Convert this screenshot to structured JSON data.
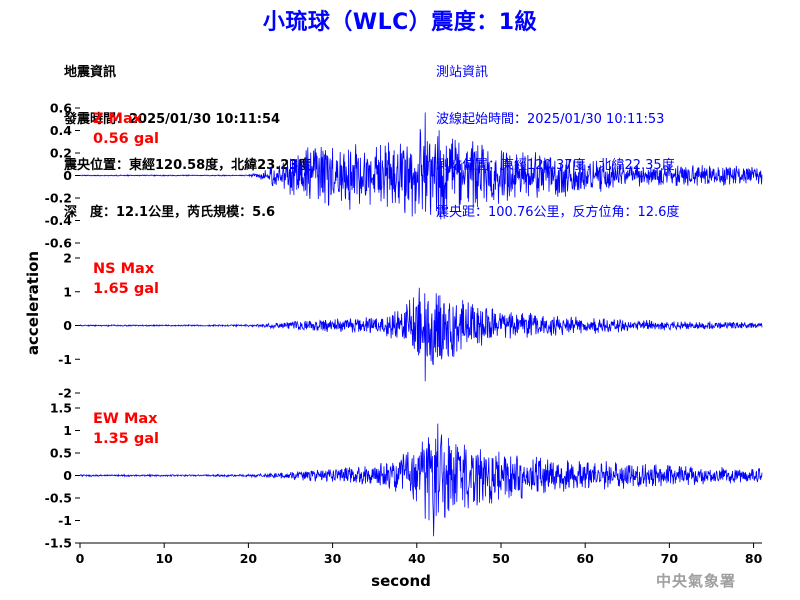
{
  "header": {
    "title": "小琉球（WLC）震度：1級",
    "quake_info": [
      "地震資訊",
      "發震時間：2025/01/30 10:11:54",
      "震央位置：東經120.58度，北緯23.23度",
      "深　度：12.1公里，芮氏規模：5.6"
    ],
    "station_info": [
      "測站資訊",
      "波線起始時間：2025/01/30 10:11:53",
      "測站位置：東經120.37度，北緯22.35度",
      "震央距：100.76公里，反方位角：12.6度"
    ]
  },
  "credit": "中央氣象署",
  "colors": {
    "trace": "#0000ff",
    "label": "#ff0000",
    "title": "#0000ff"
  },
  "chart_data": [
    {
      "type": "line",
      "component": "Z",
      "label": "Z Max",
      "max_text": "0.56 gal",
      "peak": 0.56,
      "ylim": [
        -0.6,
        0.6
      ],
      "yticks": [
        -0.6,
        -0.4,
        -0.2,
        0,
        0.2,
        0.4,
        0.6
      ],
      "ytick_labels": [
        "-0.6",
        "-0.4",
        "-0.2",
        "0",
        "0.2",
        "0.4",
        "0.6"
      ],
      "x": [
        0,
        5,
        10,
        15,
        20,
        21,
        22,
        23,
        24,
        25,
        26,
        28,
        30,
        32,
        34,
        36,
        38,
        40,
        41,
        42,
        43,
        44,
        46,
        48,
        50,
        52,
        55,
        58,
        60,
        65,
        70,
        75,
        80,
        81
      ],
      "envelope": [
        0.005,
        0.005,
        0.005,
        0.005,
        0.006,
        0.02,
        0.06,
        0.11,
        0.15,
        0.2,
        0.24,
        0.28,
        0.3,
        0.32,
        0.3,
        0.32,
        0.34,
        0.4,
        0.56,
        0.44,
        0.46,
        0.38,
        0.36,
        0.3,
        0.28,
        0.26,
        0.22,
        0.2,
        0.16,
        0.12,
        0.1,
        0.1,
        0.09,
        0.08
      ]
    },
    {
      "type": "line",
      "component": "NS",
      "label": "NS Max",
      "max_text": "1.65 gal",
      "peak": 1.65,
      "ylim": [
        -2,
        2
      ],
      "yticks": [
        -2,
        -1,
        0,
        1,
        2
      ],
      "ytick_labels": [
        "-2",
        "-1",
        "0",
        "1",
        "2"
      ],
      "x": [
        0,
        5,
        10,
        15,
        20,
        22,
        24,
        26,
        28,
        30,
        32,
        34,
        36,
        38,
        39,
        40,
        41,
        42,
        43,
        44,
        46,
        48,
        50,
        52,
        55,
        58,
        60,
        65,
        70,
        75,
        80,
        81
      ],
      "envelope": [
        0.02,
        0.02,
        0.02,
        0.02,
        0.03,
        0.06,
        0.1,
        0.14,
        0.18,
        0.22,
        0.24,
        0.26,
        0.3,
        0.5,
        0.8,
        1.2,
        1.65,
        1.3,
        1.1,
        1.0,
        0.7,
        0.6,
        0.5,
        0.42,
        0.36,
        0.3,
        0.26,
        0.2,
        0.14,
        0.12,
        0.1,
        0.09
      ]
    },
    {
      "type": "line",
      "component": "EW",
      "label": "EW Max",
      "max_text": "1.35 gal",
      "peak": 1.35,
      "ylim": [
        -1.5,
        1.5
      ],
      "yticks": [
        -1.5,
        -1,
        -0.5,
        0,
        0.5,
        1,
        1.5
      ],
      "ytick_labels": [
        "-1.5",
        "-1",
        "-0.5",
        "0",
        "0.5",
        "1",
        "1.5"
      ],
      "x": [
        0,
        5,
        10,
        15,
        20,
        22,
        24,
        26,
        28,
        30,
        32,
        34,
        36,
        38,
        40,
        41,
        42,
        43,
        44,
        46,
        48,
        50,
        52,
        55,
        58,
        60,
        65,
        70,
        75,
        80,
        81
      ],
      "envelope": [
        0.02,
        0.02,
        0.02,
        0.02,
        0.03,
        0.05,
        0.08,
        0.11,
        0.14,
        0.17,
        0.2,
        0.22,
        0.3,
        0.45,
        0.8,
        1.0,
        1.35,
        1.1,
        0.95,
        0.75,
        0.7,
        0.6,
        0.55,
        0.45,
        0.4,
        0.35,
        0.3,
        0.24,
        0.2,
        0.18,
        0.16
      ]
    }
  ],
  "axes": {
    "xlabel": "second",
    "ylabel": "acceleration",
    "xlim": [
      0,
      81
    ],
    "xticks": [
      0,
      10,
      20,
      30,
      40,
      50,
      60,
      70,
      80
    ],
    "xtick_labels": [
      "0",
      "10",
      "20",
      "30",
      "40",
      "50",
      "60",
      "70",
      "80"
    ]
  }
}
